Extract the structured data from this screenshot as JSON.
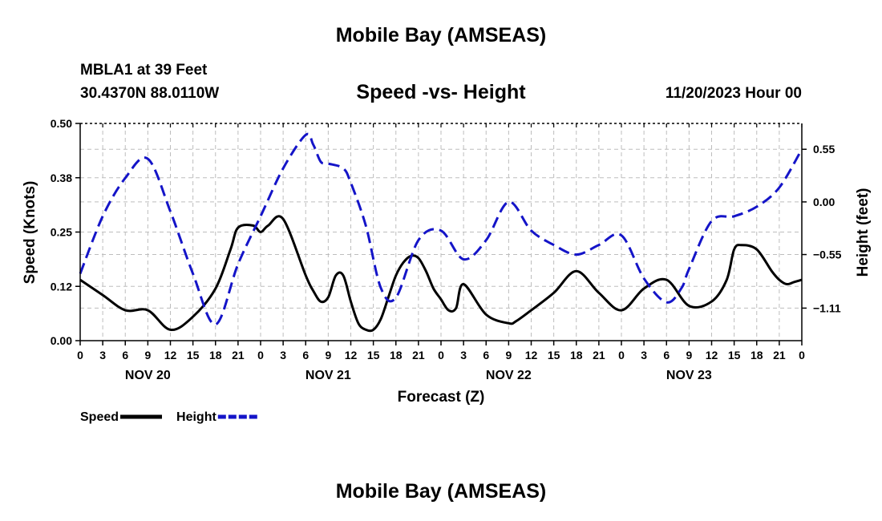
{
  "header": {
    "title": "Mobile Bay (AMSEAS)",
    "station": "MBLA1 at 39 Feet",
    "coords": "30.4370N  88.0110W",
    "datetime": "11/20/2023 Hour 00",
    "footer_title": "Mobile Bay (AMSEAS)"
  },
  "chart_data": {
    "type": "line",
    "title": "Speed -vs- Height",
    "xlabel": "Forecast (Z)",
    "ylabel": "Speed (Knots)",
    "y2label": "Height (feet)",
    "xlim": [
      0,
      96
    ],
    "ylim": [
      0,
      0.5
    ],
    "y2lim": [
      -1.45,
      0.82
    ],
    "grid": true,
    "x_tick_hours": [
      0,
      3,
      6,
      9,
      12,
      15,
      18,
      21,
      24,
      27,
      30,
      33,
      36,
      39,
      42,
      45,
      48,
      51,
      54,
      57,
      60,
      63,
      66,
      69,
      72,
      75,
      78,
      81,
      84,
      87,
      90,
      93,
      96
    ],
    "x_tick_labels": [
      "0",
      "3",
      "6",
      "9",
      "12",
      "15",
      "18",
      "21",
      "0",
      "3",
      "6",
      "9",
      "12",
      "15",
      "18",
      "21",
      "0",
      "3",
      "6",
      "9",
      "12",
      "15",
      "18",
      "21",
      "0",
      "3",
      "6",
      "9",
      "12",
      "15",
      "18",
      "21",
      "0"
    ],
    "day_labels": [
      {
        "label": "NOV 20",
        "hour": 9
      },
      {
        "label": "NOV 21",
        "hour": 33
      },
      {
        "label": "NOV 22",
        "hour": 57
      },
      {
        "label": "NOV 23",
        "hour": 81
      }
    ],
    "y_ticks": [
      0.0,
      0.125,
      0.25,
      0.375,
      0.5
    ],
    "y_tick_labels": [
      "0.00",
      "0.12",
      "0.25",
      "0.38",
      "0.50"
    ],
    "y2_ticks": [
      -1.11,
      -0.55,
      0.0,
      0.55
    ],
    "y2_tick_labels": [
      "−1.11",
      "−0.55",
      "0.00",
      "0.55"
    ],
    "legend": [
      {
        "name": "Speed",
        "color": "#000000",
        "dashed": false
      },
      {
        "name": "Height",
        "color": "#1414c8",
        "dashed": true
      }
    ],
    "series": [
      {
        "name": "Speed",
        "axis": "left",
        "color": "#000000",
        "x": [
          0,
          3,
          6,
          9,
          12,
          15,
          18,
          20,
          21,
          23,
          24,
          25,
          27,
          30,
          31,
          32,
          33,
          34,
          35,
          36,
          37,
          38,
          39,
          40,
          41,
          42,
          43,
          44,
          45,
          46,
          47,
          48,
          49,
          50,
          51,
          54,
          57,
          58,
          60,
          63,
          66,
          69,
          72,
          75,
          78,
          81,
          84,
          86,
          87,
          88,
          90,
          92,
          93,
          94,
          95,
          96
        ],
        "values": [
          0.14,
          0.105,
          0.07,
          0.07,
          0.025,
          0.055,
          0.12,
          0.21,
          0.26,
          0.265,
          0.25,
          0.265,
          0.28,
          0.15,
          0.115,
          0.09,
          0.1,
          0.15,
          0.15,
          0.09,
          0.04,
          0.025,
          0.025,
          0.05,
          0.1,
          0.15,
          0.18,
          0.195,
          0.19,
          0.16,
          0.12,
          0.095,
          0.07,
          0.075,
          0.13,
          0.06,
          0.04,
          0.045,
          0.07,
          0.11,
          0.16,
          0.11,
          0.07,
          0.12,
          0.14,
          0.08,
          0.09,
          0.14,
          0.21,
          0.22,
          0.21,
          0.16,
          0.14,
          0.13,
          0.135,
          0.14
        ]
      },
      {
        "name": "Height",
        "axis": "right",
        "color": "#1414c8",
        "x": [
          0,
          3,
          6,
          9,
          12,
          15,
          18,
          21,
          24,
          27,
          30,
          31,
          32,
          33,
          35,
          36,
          38,
          40,
          42,
          45,
          48,
          51,
          54,
          57,
          60,
          63,
          66,
          69,
          72,
          75,
          78,
          80,
          81,
          84,
          87,
          90,
          93,
          96
        ],
        "values": [
          -0.75,
          -0.15,
          0.25,
          0.45,
          -0.1,
          -0.75,
          -1.28,
          -0.65,
          -0.15,
          0.35,
          0.7,
          0.6,
          0.42,
          0.4,
          0.35,
          0.2,
          -0.25,
          -0.9,
          -1.0,
          -0.4,
          -0.3,
          -0.6,
          -0.4,
          0.0,
          -0.3,
          -0.45,
          -0.55,
          -0.45,
          -0.35,
          -0.8,
          -1.05,
          -0.9,
          -0.7,
          -0.2,
          -0.15,
          -0.05,
          0.15,
          0.55
        ]
      }
    ]
  }
}
